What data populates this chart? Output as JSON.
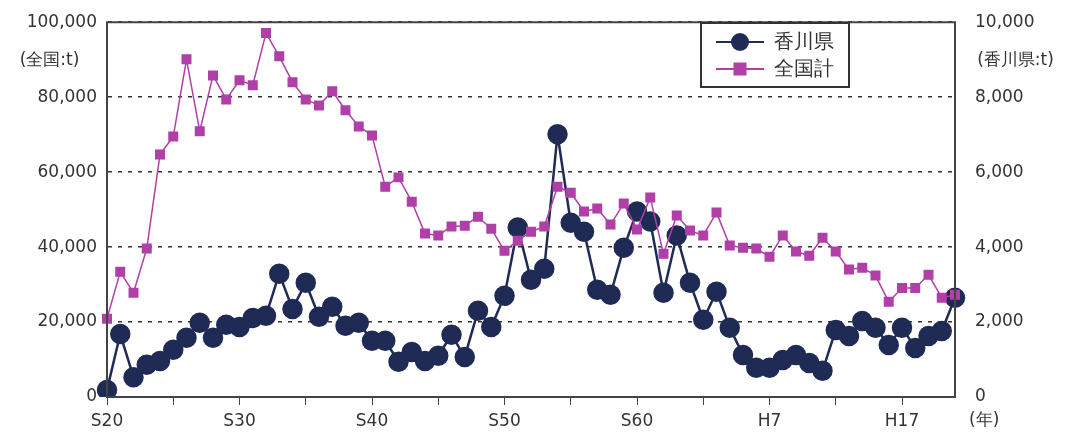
{
  "chart_data": {
    "type": "line",
    "categories": [
      "S20",
      null,
      null,
      null,
      null,
      null,
      null,
      null,
      null,
      null,
      "S30",
      null,
      null,
      null,
      null,
      null,
      null,
      null,
      null,
      null,
      "S40",
      null,
      null,
      null,
      null,
      null,
      null,
      null,
      null,
      null,
      "S50",
      null,
      null,
      null,
      null,
      null,
      null,
      null,
      null,
      null,
      "S60",
      null,
      null,
      null,
      null,
      null,
      null,
      null,
      null,
      null,
      "H7",
      null,
      null,
      null,
      null,
      null,
      null,
      null,
      null,
      null,
      "H17",
      null,
      null,
      null,
      null
    ],
    "xlabel": "(年)",
    "ylabel": "(全国:t)",
    "y2label": "(香川県:t)",
    "series": [
      {
        "name": "香川県",
        "color": "#1f2a55",
        "marker": "circle",
        "axis": "y2",
        "values": [
          190,
          1680,
          530,
          860,
          960,
          1260,
          1580,
          1980,
          1580,
          1930,
          1870,
          2110,
          2170,
          3290,
          2350,
          3050,
          2140,
          2410,
          1900,
          1980,
          1500,
          1500,
          940,
          1200,
          960,
          1100,
          1660,
          1070,
          2300,
          1870,
          2700,
          4520,
          3130,
          3420,
          7010,
          4650,
          4410,
          2860,
          2730,
          3980,
          4950,
          4680,
          2780,
          4310,
          3050,
          2060,
          2810,
          1850,
          1120,
          780,
          780,
          990,
          1120,
          910,
          700,
          1790,
          1630,
          2030,
          1850,
          1390,
          1850,
          1310,
          1630,
          1760,
          2650
        ]
      },
      {
        "name": "全国計",
        "color": "#b03fa8",
        "marker": "square",
        "values": [
          20900,
          33400,
          27800,
          39600,
          64700,
          69500,
          90100,
          70900,
          85800,
          79400,
          84500,
          83200,
          97100,
          90900,
          84000,
          79400,
          77800,
          81600,
          76500,
          72200,
          69800,
          56100,
          58600,
          52100,
          43600,
          43100,
          45500,
          45700,
          48100,
          44900,
          39000,
          41700,
          44100,
          45500,
          56100,
          54500,
          49500,
          50300,
          46000,
          51600,
          44700,
          53200,
          38200,
          48400,
          44400,
          43100,
          49200,
          40400,
          39800,
          39600,
          37400,
          43100,
          38800,
          37700,
          42500,
          38800,
          34000,
          34500,
          32400,
          25400,
          29100,
          29100,
          32600,
          26500,
          27300
        ]
      }
    ],
    "ylim": [
      0,
      100000
    ],
    "yticks": [
      0,
      {
        "value": 20000,
        "label": "20,000"
      },
      {
        "value": 40000,
        "label": "40,000"
      },
      {
        "value": 60000,
        "label": "60,000"
      },
      {
        "value": 80000,
        "label": "80,000"
      },
      {
        "value": 100000,
        "label": "100,000"
      }
    ],
    "y2lim": [
      0,
      10000
    ],
    "y2ticks": [
      0,
      {
        "value": 2000,
        "label": "2,000"
      },
      {
        "value": 4000,
        "label": "4,000"
      },
      {
        "value": 6000,
        "label": "6,000"
      },
      {
        "value": 8000,
        "label": "8,000"
      },
      {
        "value": 10000,
        "label": "10,000"
      }
    ],
    "grid": "y",
    "legend": "top right",
    "line_style": "solid"
  }
}
